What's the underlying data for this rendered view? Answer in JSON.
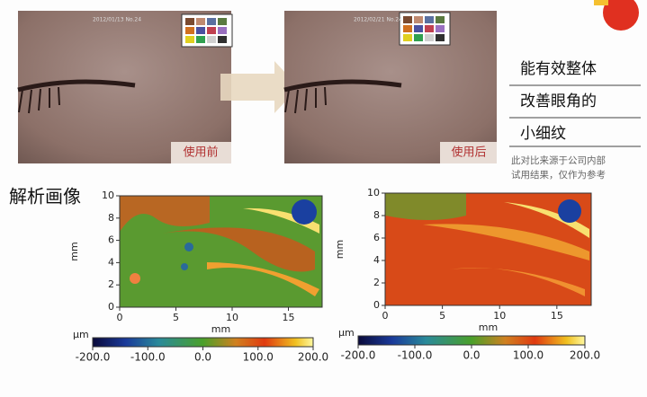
{
  "photos": [
    {
      "date": "2012/01/13 No.24",
      "label": "使用前"
    },
    {
      "date": "2012/02/21 No.24",
      "label": "使用后"
    }
  ],
  "claim": {
    "lines": [
      "能有效整体",
      "改善眼角的",
      "小细纹"
    ],
    "note": [
      "此对比来源于公司内部",
      "试用结果，仅作为参考"
    ]
  },
  "analysis": {
    "title": "解析画像",
    "maps": [
      {
        "xlabel": "mm",
        "ylabel": "mm",
        "xlim": [
          0,
          18
        ],
        "ylim": [
          0,
          10
        ],
        "xticks": [
          0,
          5,
          10,
          15
        ],
        "yticks": [
          0,
          2,
          4,
          6,
          8,
          10
        ],
        "colorbar": {
          "unit": "μm",
          "lim": [
            -200,
            200
          ],
          "ticks": [
            {
              "value": -200,
              "label": "-200.0"
            },
            {
              "value": -100,
              "label": "-100.0"
            },
            {
              "value": 0,
              "label": "0.0"
            },
            {
              "value": 100,
              "label": "100.0"
            },
            {
              "value": 200,
              "label": "200.0"
            }
          ]
        }
      },
      {
        "xlabel": "mm",
        "ylabel": "mm",
        "xlim": [
          0,
          18
        ],
        "ylim": [
          0,
          10
        ],
        "xticks": [
          0,
          5,
          10,
          15
        ],
        "yticks": [
          0,
          2,
          4,
          6,
          8,
          10
        ],
        "colorbar": {
          "unit": "μm",
          "lim": [
            -200,
            200
          ],
          "ticks": [
            {
              "value": -200,
              "label": "-200.0"
            },
            {
              "value": -100,
              "label": "-100.0"
            },
            {
              "value": 0,
              "label": "0.0"
            },
            {
              "value": 100,
              "label": "100.0"
            },
            {
              "value": 200,
              "label": "200.0"
            }
          ]
        }
      }
    ]
  }
}
